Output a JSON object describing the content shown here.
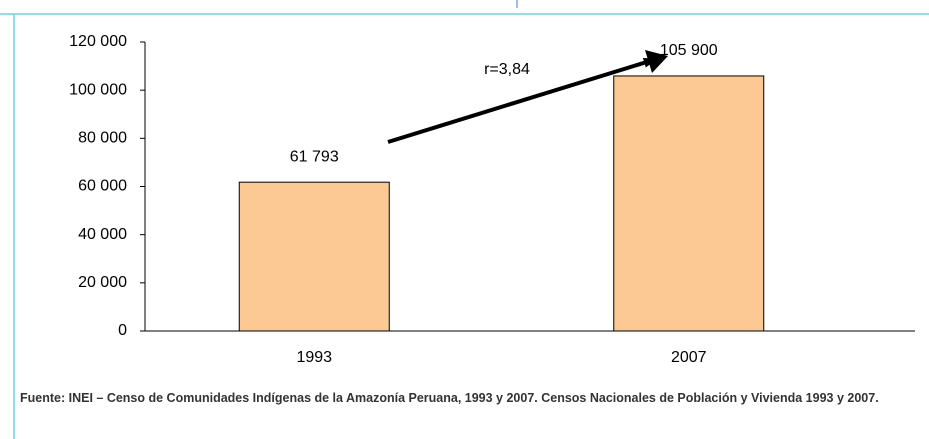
{
  "chart_data": {
    "type": "bar",
    "categories": [
      "1993",
      "2007"
    ],
    "values": [
      61793,
      105900
    ],
    "value_labels": [
      "61 793",
      "105 900"
    ],
    "color": "#fcc995",
    "ylim": [
      0,
      120000
    ],
    "yticks": [
      {
        "value": 0,
        "label": "0"
      },
      {
        "value": 20000,
        "label": "20 000"
      },
      {
        "value": 40000,
        "label": "40 000"
      },
      {
        "value": 60000,
        "label": "60 000"
      },
      {
        "value": 80000,
        "label": "80 000"
      },
      {
        "value": 100000,
        "label": "100 000"
      },
      {
        "value": 120000,
        "label": "120 000"
      }
    ],
    "annotation": "r=3,84",
    "source": "Fuente:  INEI – Censo de Comunidades Indígenas de la Amazonía Peruana, 1993 y 2007. Censos Nacionales  de Población  y Vivienda 1993 y 2007."
  }
}
